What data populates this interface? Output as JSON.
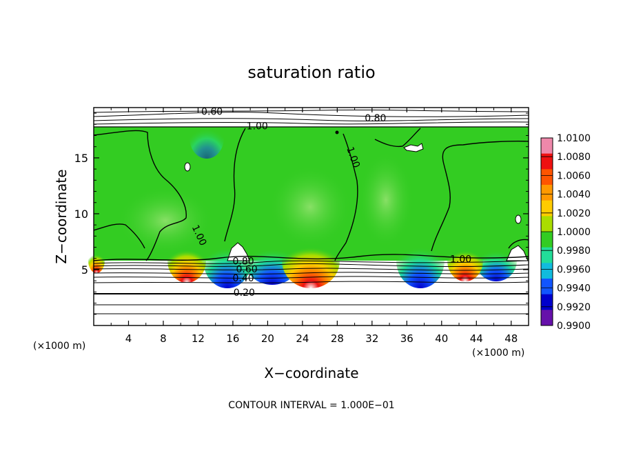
{
  "chart_data": {
    "type": "heatmap",
    "title": "saturation ratio",
    "xlabel": "X−coordinate",
    "ylabel": "Z−coordinate",
    "x_unit_left": "(×1000 m)",
    "x_unit_right": "(×1000 m)",
    "xlim": [
      0,
      50
    ],
    "ylim": [
      0,
      19.5
    ],
    "x_ticks": [
      4,
      8,
      12,
      16,
      20,
      24,
      28,
      32,
      36,
      40,
      44,
      48
    ],
    "y_ticks": [
      5,
      10,
      15
    ],
    "grid": false,
    "colorbar": {
      "labels": [
        "1.0100",
        "1.0080",
        "1.0060",
        "1.0040",
        "1.0020",
        "1.0000",
        "0.9980",
        "0.9960",
        "0.9940",
        "0.9920",
        "0.9900"
      ],
      "min": 0.99,
      "max": 1.01,
      "colors": [
        "#ee88aa",
        "#ee1111",
        "#ff5500",
        "#ff9900",
        "#ffcc00",
        "#aadd00",
        "#33cc22",
        "#22dd99",
        "#11bbdd",
        "#1155ff",
        "#0000cc",
        "#6611aa"
      ]
    },
    "contour_labels": [
      {
        "text": "0.60",
        "x": 13.6,
        "y": 19.1
      },
      {
        "text": "0.80",
        "x": 32.4,
        "y": 18.5
      },
      {
        "text": "1.00",
        "x": 18.8,
        "y": 17.8
      },
      {
        "text": "1.00",
        "x": 29.5,
        "y": 15.2
      },
      {
        "text": "1.00",
        "x": 11.8,
        "y": 8.2
      },
      {
        "text": "1.00",
        "x": 42.2,
        "y": 5.9
      },
      {
        "text": "0.80",
        "x": 17.2,
        "y": 5.7
      },
      {
        "text": "0.60",
        "x": 17.6,
        "y": 5.0
      },
      {
        "text": "0.40",
        "x": 17.2,
        "y": 4.2
      },
      {
        "text": "0.20",
        "x": 17.3,
        "y": 2.9
      }
    ],
    "footer": "CONTOUR INTERVAL = 1.000E−01"
  }
}
